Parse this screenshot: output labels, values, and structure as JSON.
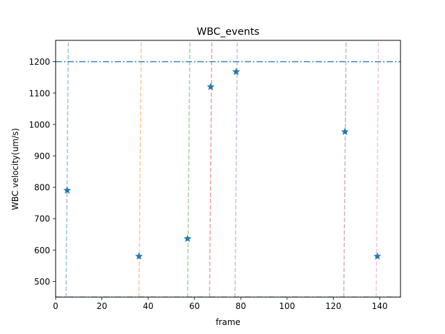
{
  "chart_data": {
    "type": "scatter",
    "title": "WBC_events",
    "xlabel": "frame",
    "ylabel": "WBC velocity(um/s)",
    "xlim": [
      0,
      149
    ],
    "ylim": [
      450,
      1268
    ],
    "xticks": [
      0,
      20,
      40,
      60,
      80,
      100,
      120,
      140
    ],
    "yticks": [
      500,
      600,
      700,
      800,
      900,
      1000,
      1100,
      1200
    ],
    "grid": false,
    "marker": "star",
    "marker_color": "#1f77b4",
    "points": [
      {
        "x": 5,
        "y": 790
      },
      {
        "x": 36,
        "y": 580
      },
      {
        "x": 57,
        "y": 636
      },
      {
        "x": 67,
        "y": 1120
      },
      {
        "x": 78,
        "y": 1168
      },
      {
        "x": 125,
        "y": 977
      },
      {
        "x": 139,
        "y": 580
      }
    ],
    "event_lines": [
      {
        "x0": 4.5,
        "x1": 5.5,
        "color": "#1f77b4"
      },
      {
        "x0": 36,
        "x1": 37,
        "color": "#ff7f0e"
      },
      {
        "x0": 57,
        "x1": 58,
        "color": "#2ca02c"
      },
      {
        "x0": 66.5,
        "x1": 67.5,
        "color": "#d62728"
      },
      {
        "x0": 77.5,
        "x1": 78.5,
        "color": "#9467bd"
      },
      {
        "x0": 124.5,
        "x1": 125.5,
        "color": "#8c564b"
      },
      {
        "x0": 138.5,
        "x1": 139.5,
        "color": "#e377c2"
      }
    ],
    "threshold_lines": [
      {
        "y": 1200,
        "color": "#1f77b4",
        "style": "dashdot"
      },
      {
        "y": 450,
        "color": "#1f77b4",
        "style": "dashdot"
      }
    ]
  }
}
